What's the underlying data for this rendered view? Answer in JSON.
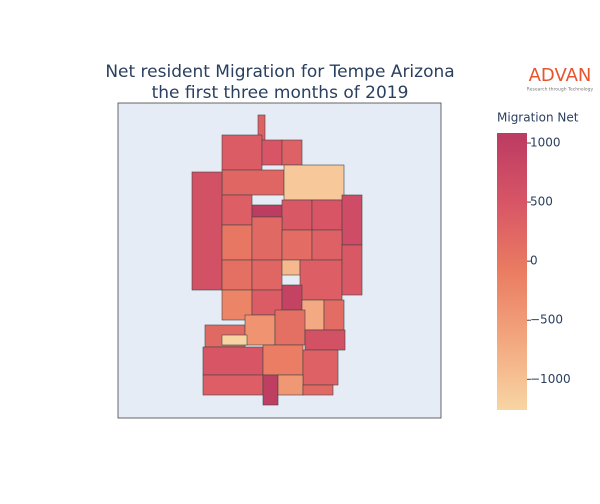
{
  "chart_data": {
    "type": "choropleth",
    "title": [
      "Net resident Migration for Tempe Arizona",
      "the first three months of 2019"
    ],
    "logo": {
      "name": "ADVAN",
      "tagline": "Research through Technology"
    },
    "colorbar_title": "Migration Net",
    "values": [
      300,
      400,
      500,
      300,
      250,
      -1100,
      600,
      350,
      1050,
      450,
      500,
      700,
      0,
      200,
      150,
      300,
      100,
      250,
      -900,
      350,
      450,
      -200,
      400,
      900,
      -700,
      150,
      200,
      -400,
      100,
      600,
      -1250,
      500,
      -100,
      300,
      350,
      1000,
      -450,
      200
    ],
    "zlim": [
      -1260,
      1085
    ],
    "zticks": [
      {
        "value": 1000,
        "label": "1000"
      },
      {
        "value": 500,
        "label": "500"
      },
      {
        "value": 0,
        "label": "0"
      },
      {
        "value": -500,
        "label": "−500"
      },
      {
        "value": -1000,
        "label": "−1000"
      }
    ],
    "colorscale": [
      "#f8d5a4",
      "#f3a77f",
      "#ea7c62",
      "#d85566",
      "#bb3b62"
    ]
  }
}
